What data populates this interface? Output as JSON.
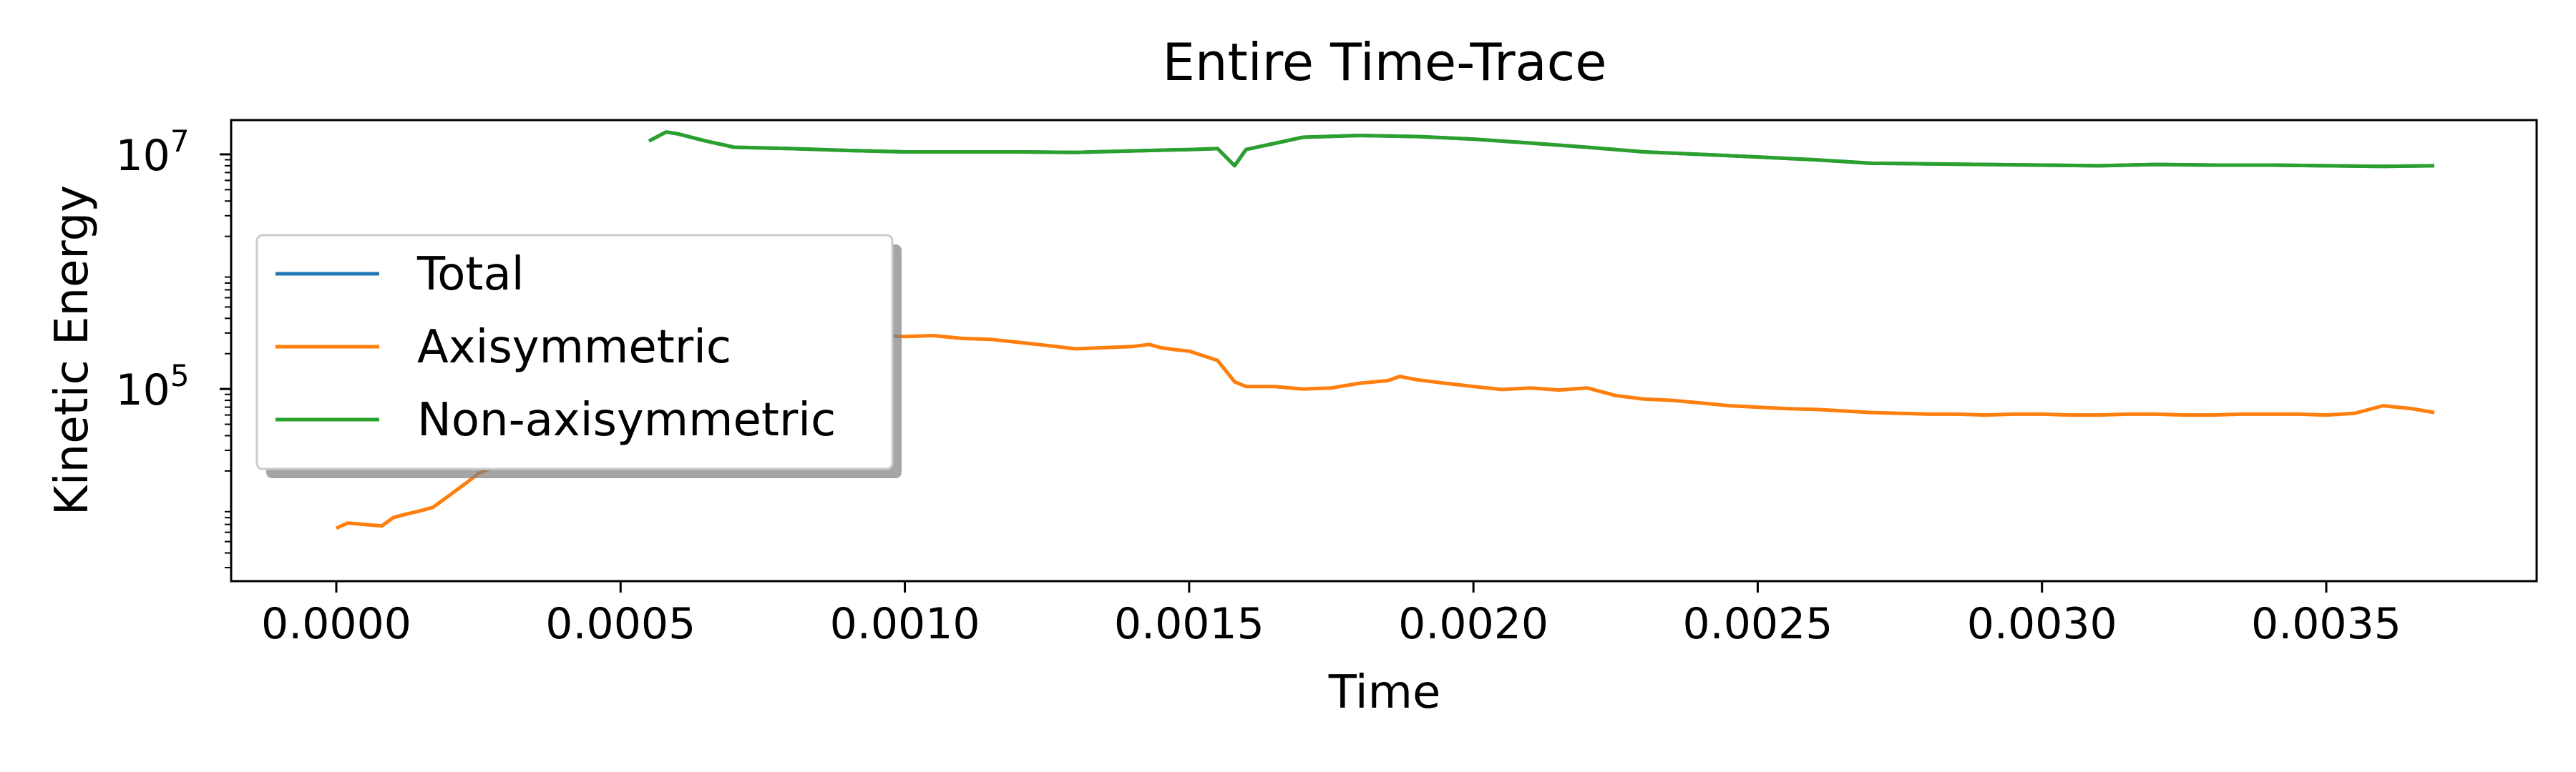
{
  "chart_data": {
    "type": "line",
    "title": "Entire Time-Trace",
    "xlabel": "Time",
    "ylabel": "Kinetic Energy",
    "y_scale": "log",
    "xlim": [
      -0.000185,
      0.00387
    ],
    "ylim": [
      2300,
      19600000
    ],
    "x_ticks": [
      0.0,
      0.0005,
      0.001,
      0.0015,
      0.002,
      0.0025,
      0.003,
      0.0035
    ],
    "x_tick_labels": [
      "0.0000",
      "0.0005",
      "0.0010",
      "0.0015",
      "0.0020",
      "0.0025",
      "0.0030",
      "0.0035"
    ],
    "y_ticks": [
      100000,
      10000000
    ],
    "y_tick_labels": [
      {
        "base": "10",
        "exp": "5"
      },
      {
        "base": "10",
        "exp": "7"
      }
    ],
    "grid": false,
    "legend_position": "center-left",
    "series": [
      {
        "name": "Total",
        "color": "#1f77b4",
        "x": [
          0.00055,
          0.00058,
          0.0006,
          0.00065,
          0.0007,
          0.0008,
          0.0009,
          0.001,
          0.0011,
          0.0012,
          0.0013,
          0.0014,
          0.0015,
          0.00155,
          0.00158,
          0.0016,
          0.0017,
          0.0018,
          0.0019,
          0.002,
          0.0021,
          0.0022,
          0.0023,
          0.0024,
          0.0025,
          0.0026,
          0.0027,
          0.0028,
          0.0029,
          0.003,
          0.0031,
          0.0032,
          0.0033,
          0.0034,
          0.0035,
          0.0036,
          0.00369
        ],
        "y": [
          13000000,
          15500000,
          15000000,
          13000000,
          11500000,
          11200000,
          10800000,
          10500000,
          10500000,
          10500000,
          10400000,
          10700000,
          11000000,
          11200000,
          8000000,
          11000000,
          14000000,
          14500000,
          14200000,
          13500000,
          12500000,
          11500000,
          10500000,
          10000000,
          9500000,
          9000000,
          8400000,
          8300000,
          8200000,
          8100000,
          8000000,
          8200000,
          8100000,
          8100000,
          8000000,
          7900000,
          8000000
        ]
      },
      {
        "name": "Axisymmetric",
        "color": "#ff7f0e",
        "x": [
          0.0,
          2e-05,
          5e-05,
          8e-05,
          0.0001,
          0.00012,
          0.00015,
          0.00017,
          0.0002,
          0.00023,
          0.00025,
          0.00027,
          0.0003,
          0.00035,
          0.0004,
          0.00045,
          0.0005,
          0.00055,
          0.0006,
          0.00065,
          0.0007,
          0.00075,
          0.0008,
          0.00085,
          0.0009,
          0.00095,
          0.001,
          0.00105,
          0.0011,
          0.00115,
          0.0012,
          0.00125,
          0.0013,
          0.00135,
          0.0014,
          0.00143,
          0.00145,
          0.00148,
          0.0015,
          0.00155,
          0.00158,
          0.0016,
          0.00165,
          0.0017,
          0.00175,
          0.0018,
          0.00185,
          0.00187,
          0.0019,
          0.00195,
          0.002,
          0.00205,
          0.0021,
          0.00215,
          0.0022,
          0.00225,
          0.0023,
          0.00235,
          0.0024,
          0.00245,
          0.0025,
          0.00255,
          0.0026,
          0.00265,
          0.0027,
          0.00275,
          0.0028,
          0.00285,
          0.0029,
          0.00295,
          0.003,
          0.00305,
          0.0031,
          0.00315,
          0.0032,
          0.00325,
          0.0033,
          0.00335,
          0.0034,
          0.00345,
          0.0035,
          0.00355,
          0.0036,
          0.00365,
          0.00369
        ],
        "y": [
          6500,
          7200,
          7000,
          6800,
          8000,
          8500,
          9200,
          9800,
          12500,
          16000,
          19000,
          21000,
          24000,
          32000,
          48000,
          80000,
          140000,
          210000,
          250000,
          270000,
          280000,
          290000,
          300000,
          295000,
          290000,
          285000,
          280000,
          285000,
          270000,
          265000,
          250000,
          235000,
          220000,
          225000,
          230000,
          240000,
          225000,
          215000,
          210000,
          175000,
          115000,
          105000,
          105000,
          100000,
          102000,
          112000,
          118000,
          128000,
          120000,
          112000,
          105000,
          99000,
          102000,
          98000,
          102000,
          88000,
          82000,
          80000,
          76000,
          72000,
          70000,
          68000,
          67000,
          65000,
          63000,
          62000,
          61000,
          61000,
          60000,
          61000,
          61000,
          60000,
          60000,
          61000,
          61000,
          60000,
          60000,
          61000,
          61000,
          61000,
          60000,
          62000,
          72000,
          68000,
          63000
        ]
      },
      {
        "name": "Non-axisymmetric",
        "color": "#2ca02c",
        "x": [
          0.00055,
          0.00058,
          0.0006,
          0.00065,
          0.0007,
          0.0008,
          0.0009,
          0.001,
          0.0011,
          0.0012,
          0.0013,
          0.0014,
          0.0015,
          0.00155,
          0.00158,
          0.0016,
          0.0017,
          0.0018,
          0.0019,
          0.002,
          0.0021,
          0.0022,
          0.0023,
          0.0024,
          0.0025,
          0.0026,
          0.0027,
          0.0028,
          0.0029,
          0.003,
          0.0031,
          0.0032,
          0.0033,
          0.0034,
          0.0035,
          0.0036,
          0.00369
        ],
        "y": [
          13000000,
          15500000,
          15000000,
          13000000,
          11500000,
          11200000,
          10800000,
          10500000,
          10500000,
          10500000,
          10400000,
          10700000,
          11000000,
          11200000,
          8000000,
          11000000,
          14000000,
          14500000,
          14200000,
          13500000,
          12500000,
          11500000,
          10500000,
          10000000,
          9500000,
          9000000,
          8400000,
          8300000,
          8200000,
          8100000,
          8000000,
          8200000,
          8100000,
          8100000,
          8000000,
          7900000,
          8000000
        ]
      }
    ]
  }
}
